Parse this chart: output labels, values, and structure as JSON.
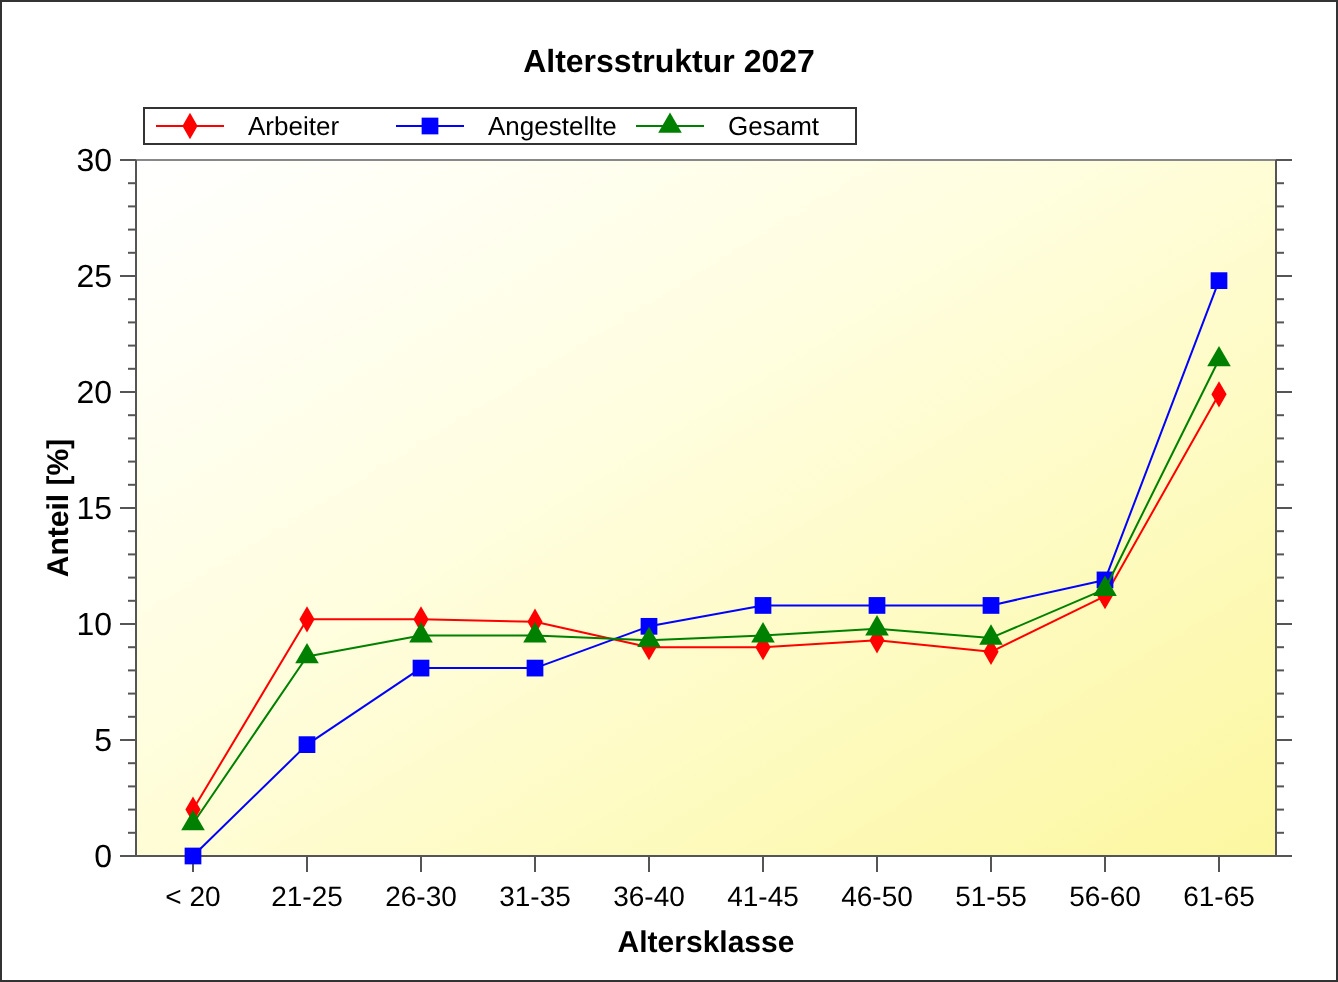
{
  "chart_data": {
    "type": "line",
    "title": "Altersstruktur 2027",
    "xlabel": "Altersklasse",
    "ylabel": "Anteil [%]",
    "categories": [
      "< 20",
      "21-25",
      "26-30",
      "31-35",
      "36-40",
      "41-45",
      "46-50",
      "51-55",
      "56-60",
      "61-65"
    ],
    "series": [
      {
        "name": "Arbeiter",
        "color": "#ff0000",
        "marker": "diamond",
        "values": [
          2.0,
          10.2,
          10.2,
          10.1,
          9.0,
          9.0,
          9.3,
          8.8,
          11.2,
          19.9
        ]
      },
      {
        "name": "Angestellte",
        "color": "#0000ff",
        "marker": "square",
        "values": [
          0,
          4.8,
          8.1,
          8.1,
          9.9,
          10.8,
          10.8,
          10.8,
          11.9,
          24.8
        ]
      },
      {
        "name": "Gesamt",
        "color": "#008000",
        "marker": "triangle",
        "values": [
          1.4,
          8.6,
          9.5,
          9.5,
          9.3,
          9.5,
          9.8,
          9.4,
          11.5,
          21.4
        ]
      }
    ],
    "ylim": [
      0,
      30
    ],
    "yticks": [
      0,
      5,
      10,
      15,
      20,
      25,
      30
    ],
    "grid": false,
    "legend": "top left",
    "line_style": "solid"
  }
}
